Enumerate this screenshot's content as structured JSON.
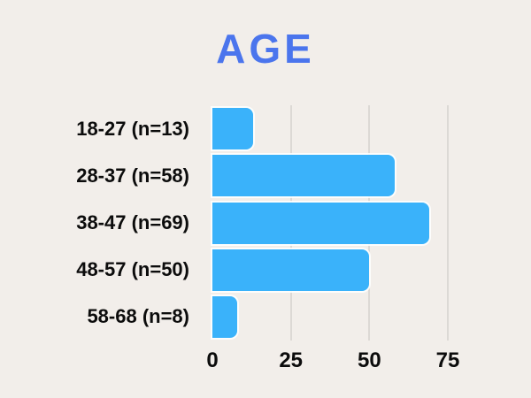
{
  "page": {
    "background_color": "#f2eeea"
  },
  "chart_data": {
    "type": "bar",
    "orientation": "horizontal",
    "title": "AGE",
    "categories": [
      "18-27 (n=13)",
      "28-37 (n=58)",
      "38-47 (n=69)",
      "48-57 (n=50)",
      "58-68 (n=8)"
    ],
    "values": [
      13,
      58,
      69,
      50,
      8
    ],
    "xlabel": "",
    "ylabel": "",
    "xlim": [
      0,
      75
    ],
    "x_ticks": [
      0,
      25,
      50,
      75
    ],
    "grid": true,
    "grid_ticks_with_lines": [
      25,
      50,
      75
    ],
    "legend": false,
    "colors": {
      "title": "#4b75ed",
      "bar": "#3ab2fa",
      "text": "#0c0c0c",
      "gridline": "#dcd9d5"
    }
  }
}
